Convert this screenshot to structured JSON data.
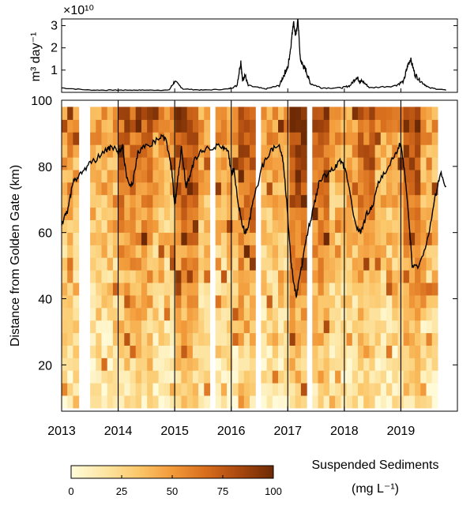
{
  "chart_data": [
    {
      "type": "line",
      "panel": "discharge",
      "ylabel": "m³ day⁻¹",
      "scale_label": "×10¹⁰",
      "ylim": [
        0,
        3.3
      ],
      "yticks": [
        "1",
        "2",
        "3"
      ],
      "ytick_values": [
        1,
        2,
        3
      ],
      "x_years": [
        2013.0,
        2013.5,
        2013.9,
        2014.2,
        2014.5,
        2014.9,
        2015.0,
        2015.15,
        2015.5,
        2015.95,
        2016.1,
        2016.17,
        2016.2,
        2016.24,
        2016.3,
        2016.6,
        2016.85,
        2016.95,
        2017.0,
        2017.05,
        2017.1,
        2017.14,
        2017.18,
        2017.22,
        2017.27,
        2017.32,
        2017.4,
        2017.6,
        2017.95,
        2018.1,
        2018.22,
        2018.27,
        2018.32,
        2018.45,
        2018.9,
        2019.05,
        2019.12,
        2019.17,
        2019.25,
        2019.35,
        2019.5,
        2019.8
      ],
      "values": [
        0.2,
        0.1,
        0.1,
        0.1,
        0.1,
        0.1,
        0.5,
        0.15,
        0.1,
        0.15,
        0.3,
        1.4,
        0.5,
        0.8,
        0.3,
        0.15,
        0.3,
        0.9,
        1.1,
        2.0,
        3.2,
        2.5,
        3.3,
        1.5,
        1.2,
        1.0,
        0.4,
        0.2,
        0.2,
        0.3,
        0.7,
        0.5,
        0.5,
        0.2,
        0.3,
        0.5,
        1.2,
        1.5,
        0.8,
        0.5,
        0.2,
        0.1
      ]
    },
    {
      "type": "heatmap",
      "panel": "sediments",
      "ylabel": "Distance from Golden Gate  (km)",
      "xlabel": "",
      "xlim": [
        2013,
        2020
      ],
      "ylim": [
        6,
        100
      ],
      "xticks": [
        "2013",
        "2014",
        "2015",
        "2016",
        "2017",
        "2018",
        "2019"
      ],
      "xtick_values": [
        2013,
        2014,
        2015,
        2016,
        2017,
        2018,
        2019
      ],
      "yticks": [
        "20",
        "40",
        "60",
        "80",
        "100"
      ],
      "ytick_values": [
        20,
        40,
        60,
        80,
        100
      ],
      "year_lines": [
        2014,
        2015,
        2016,
        2017,
        2018,
        2019
      ],
      "data_x_range": [
        2013.0,
        2019.65
      ],
      "data_y_range": [
        7,
        98
      ],
      "colorbar": {
        "title": "Suspended Sediments",
        "unit": "(mg L⁻¹)",
        "ticks": [
          "0",
          "25",
          "50",
          "75",
          "100"
        ],
        "tick_values": [
          0,
          25,
          50,
          75,
          100
        ],
        "range": [
          0,
          100
        ],
        "colors": [
          "#fffbd9",
          "#fde6a4",
          "#fbc76a",
          "#f29a3a",
          "#d76d1d",
          "#a8470e",
          "#6d2a05"
        ]
      },
      "line_series": {
        "x_years": [
          2013.0,
          2013.1,
          2013.2,
          2013.3,
          2013.45,
          2013.6,
          2013.8,
          2013.9,
          2014.0,
          2014.08,
          2014.15,
          2014.25,
          2014.35,
          2014.45,
          2014.6,
          2014.75,
          2014.85,
          2014.95,
          2015.0,
          2015.05,
          2015.12,
          2015.2,
          2015.25,
          2015.35,
          2015.5,
          2015.7,
          2015.85,
          2015.95,
          2016.0,
          2016.05,
          2016.12,
          2016.2,
          2016.25,
          2016.3,
          2016.4,
          2016.55,
          2016.7,
          2016.85,
          2016.92,
          2017.0,
          2017.05,
          2017.1,
          2017.15,
          2017.22,
          2017.35,
          2017.45,
          2017.55,
          2017.7,
          2017.85,
          2017.95,
          2018.05,
          2018.2,
          2018.3,
          2018.4,
          2018.5,
          2018.6,
          2018.75,
          2018.9,
          2019.0,
          2019.08,
          2019.15,
          2019.2,
          2019.3,
          2019.45,
          2019.6,
          2019.7,
          2019.8
        ],
        "values": [
          63,
          66,
          75,
          77,
          80,
          82,
          85,
          86,
          84,
          86,
          76,
          74,
          84,
          86,
          87,
          89,
          88,
          78,
          68,
          75,
          86,
          74,
          76,
          82,
          85,
          86,
          86,
          84,
          78,
          79,
          69,
          62,
          60,
          62,
          70,
          80,
          85,
          86,
          82,
          65,
          52,
          45,
          41,
          47,
          60,
          67,
          75,
          78,
          80,
          82,
          77,
          62,
          60,
          66,
          68,
          75,
          79,
          84,
          87,
          76,
          62,
          50,
          50,
          56,
          70,
          78,
          74
        ]
      }
    }
  ]
}
